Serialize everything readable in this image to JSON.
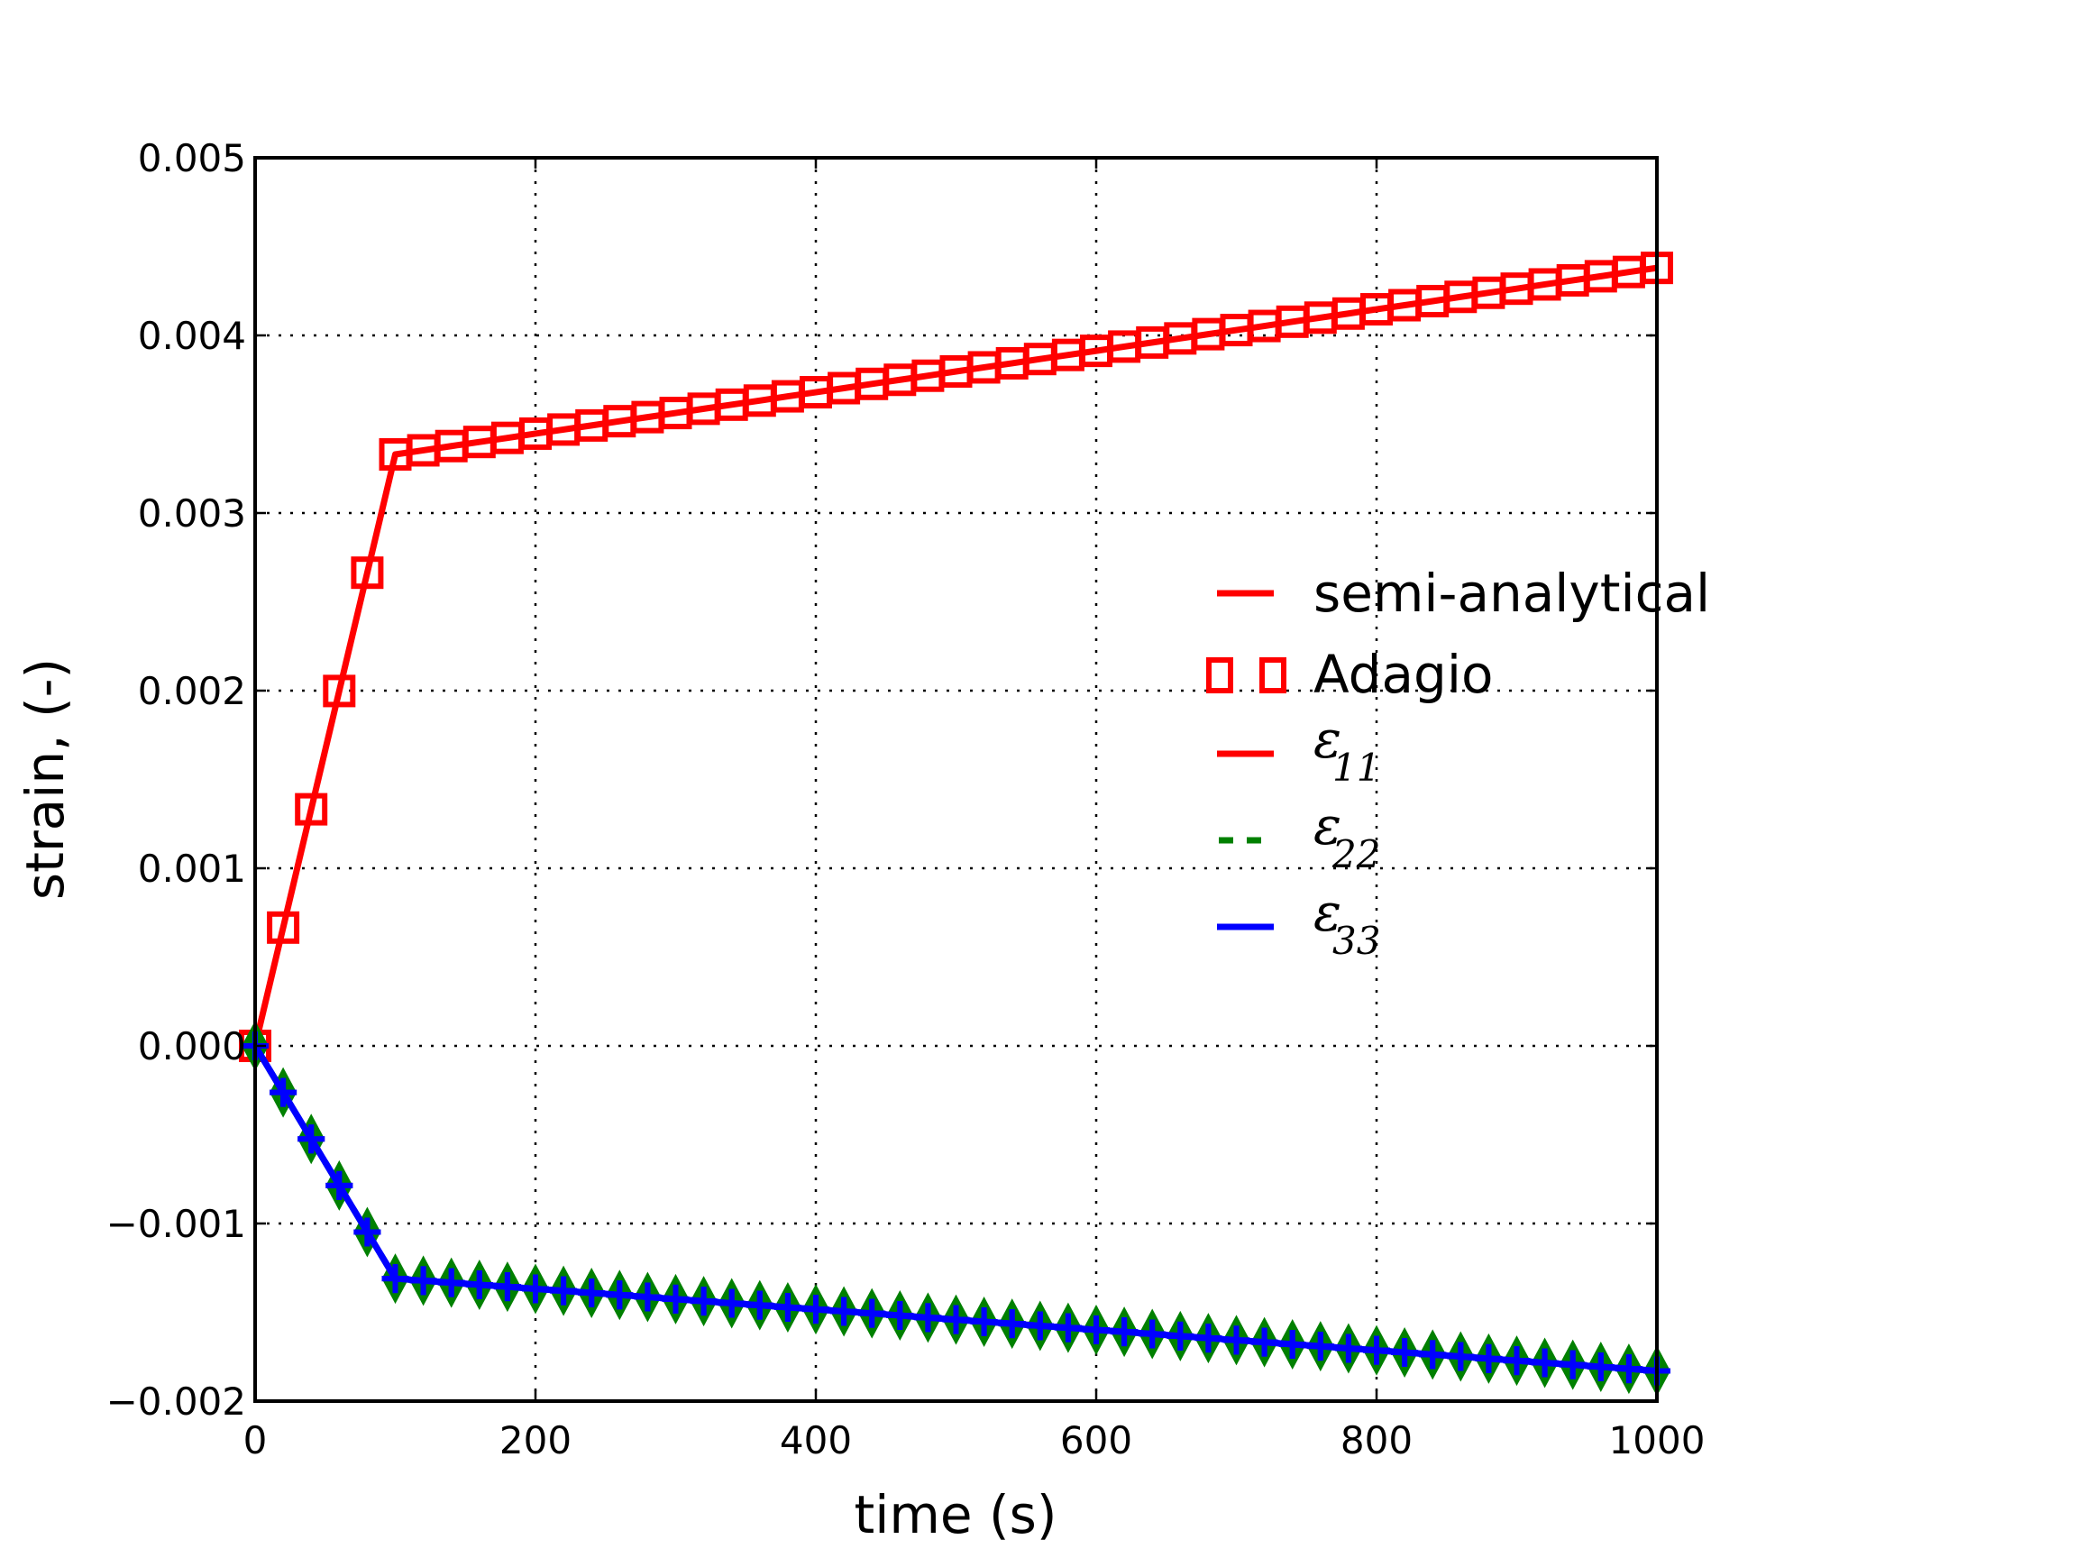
{
  "chart_data": {
    "type": "line",
    "title": "",
    "xlabel": "time (s)",
    "ylabel": "strain, (-)",
    "xlim": [
      0,
      1000
    ],
    "ylim": [
      -0.002,
      0.005
    ],
    "grid": true,
    "legend_position": "center-right",
    "x_ticks": [
      0,
      200,
      400,
      600,
      800,
      1000
    ],
    "x_tick_labels": [
      "0",
      "200",
      "400",
      "600",
      "800",
      "1000"
    ],
    "y_ticks": [
      0.005,
      0.004,
      0.003,
      0.002,
      0.001,
      0.0,
      -0.001,
      -0.002
    ],
    "y_tick_labels": [
      "0.005",
      "0.004",
      "0.003",
      "0.002",
      "0.001",
      "0.000",
      "−0.001",
      "−0.002"
    ],
    "x": [
      0,
      20,
      40,
      60,
      80,
      100,
      120,
      140,
      160,
      180,
      200,
      220,
      240,
      260,
      280,
      300,
      320,
      340,
      360,
      380,
      400,
      420,
      440,
      460,
      480,
      500,
      520,
      540,
      560,
      580,
      600,
      620,
      640,
      660,
      680,
      700,
      720,
      740,
      760,
      780,
      800,
      820,
      840,
      860,
      880,
      900,
      920,
      940,
      960,
      980,
      1000
    ],
    "series": [
      {
        "name": "semi-analytical",
        "color": "#ff0000",
        "style": "solid",
        "marker": "none",
        "key": "e11"
      },
      {
        "name": "Adagio",
        "color": "#ff0000",
        "style": "none",
        "marker": "square",
        "key": "e11"
      },
      {
        "name": "ε",
        "subscript": "11",
        "color": "#ff0000",
        "style": "solid",
        "marker": "none",
        "key": "e11"
      },
      {
        "name": "ε",
        "subscript": "22",
        "color": "#008000",
        "style": "dashed",
        "marker": "diamond",
        "key": "e22"
      },
      {
        "name": "ε",
        "subscript": "33",
        "color": "#0000ff",
        "style": "solid",
        "marker": "plus",
        "key": "e33"
      }
    ],
    "values": {
      "e11": [
        0,
        0.000666,
        0.001332,
        0.001998,
        0.002664,
        0.00333,
        0.003353,
        0.003377,
        0.0034,
        0.003423,
        0.003447,
        0.00347,
        0.003493,
        0.003517,
        0.00354,
        0.003563,
        0.003587,
        0.00361,
        0.003633,
        0.003657,
        0.00368,
        0.003703,
        0.003727,
        0.00375,
        0.003773,
        0.003797,
        0.00382,
        0.003843,
        0.003867,
        0.00389,
        0.003913,
        0.003937,
        0.00396,
        0.003983,
        0.004007,
        0.00403,
        0.004053,
        0.004077,
        0.0041,
        0.004123,
        0.004147,
        0.00417,
        0.004193,
        0.004217,
        0.00424,
        0.004263,
        0.004287,
        0.00431,
        0.004333,
        0.004357,
        0.00438
      ],
      "e22": [
        0,
        -0.000262,
        -0.000524,
        -0.000786,
        -0.001048,
        -0.00131,
        -0.001322,
        -0.001333,
        -0.001345,
        -0.001356,
        -0.001368,
        -0.001379,
        -0.001391,
        -0.001402,
        -0.001414,
        -0.001426,
        -0.001437,
        -0.001449,
        -0.00146,
        -0.001472,
        -0.001483,
        -0.001495,
        -0.001506,
        -0.001518,
        -0.00153,
        -0.001541,
        -0.001553,
        -0.001564,
        -0.001576,
        -0.001587,
        -0.001599,
        -0.00161,
        -0.001622,
        -0.001634,
        -0.001645,
        -0.001657,
        -0.001668,
        -0.00168,
        -0.001691,
        -0.001703,
        -0.001714,
        -0.001726,
        -0.001738,
        -0.001749,
        -0.001761,
        -0.001772,
        -0.001784,
        -0.001795,
        -0.001807,
        -0.001818,
        -0.00183
      ],
      "e33": [
        0,
        -0.000262,
        -0.000524,
        -0.000786,
        -0.001048,
        -0.00131,
        -0.001322,
        -0.001333,
        -0.001345,
        -0.001356,
        -0.001368,
        -0.001379,
        -0.001391,
        -0.001402,
        -0.001414,
        -0.001426,
        -0.001437,
        -0.001449,
        -0.00146,
        -0.001472,
        -0.001483,
        -0.001495,
        -0.001506,
        -0.001518,
        -0.00153,
        -0.001541,
        -0.001553,
        -0.001564,
        -0.001576,
        -0.001587,
        -0.001599,
        -0.00161,
        -0.001622,
        -0.001634,
        -0.001645,
        -0.001657,
        -0.001668,
        -0.00168,
        -0.001691,
        -0.001703,
        -0.001714,
        -0.001726,
        -0.001738,
        -0.001749,
        -0.001761,
        -0.001772,
        -0.001784,
        -0.001795,
        -0.001807,
        -0.001818,
        -0.00183
      ]
    }
  }
}
